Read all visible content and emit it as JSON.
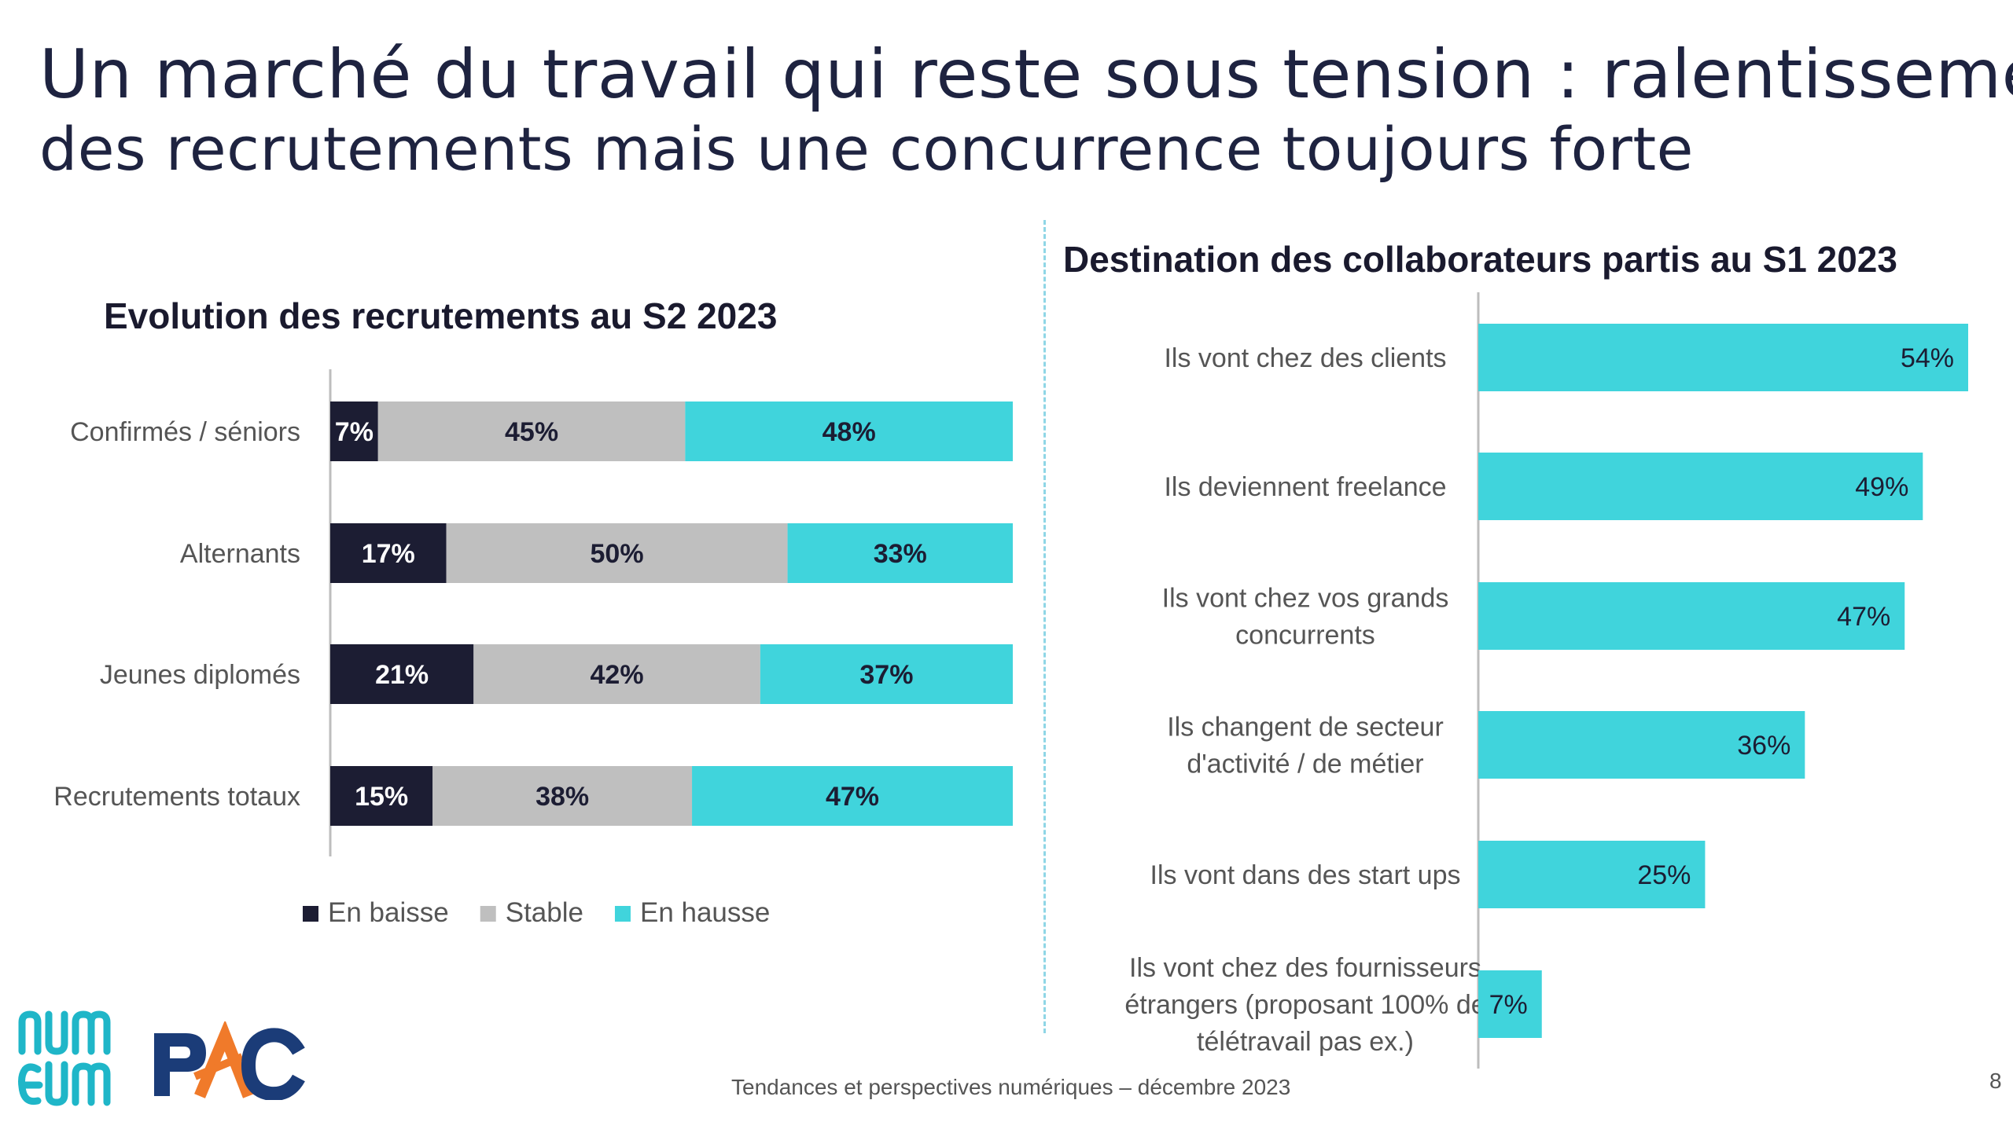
{
  "title": {
    "line1": "Un marché du travail qui reste sous tension : ralentissement",
    "line2": "des recrutements mais une concurrence toujours forte"
  },
  "footer": "Tendances et perspectives numériques – décembre 2023",
  "page_number": "8",
  "logos": {
    "numeum": "numeum",
    "pac": "PAC"
  },
  "colors": {
    "dark": "#1c1d33",
    "gray": "#bfbfbf",
    "cyan": "#40d4dc",
    "title": "#1e2340"
  },
  "chart_data": [
    {
      "type": "bar",
      "orientation": "horizontal",
      "stacked": true,
      "title": "Evolution des recrutements au S2 2023",
      "categories": [
        "Confirmés / séniors",
        "Alternants",
        "Jeunes diplomés",
        "Recrutements totaux"
      ],
      "series": [
        {
          "name": "En baisse",
          "color": "#1c1d33",
          "values": [
            7,
            17,
            21,
            15
          ],
          "labels": [
            "7%",
            "17%",
            "21%",
            "15%"
          ]
        },
        {
          "name": "Stable",
          "color": "#bfbfbf",
          "values": [
            45,
            50,
            42,
            38
          ],
          "labels": [
            "45%",
            "50%",
            "42%",
            "38%"
          ]
        },
        {
          "name": "En hausse",
          "color": "#40d4dc",
          "values": [
            48,
            33,
            37,
            47
          ],
          "labels": [
            "48%",
            "33%",
            "37%",
            "47%"
          ]
        }
      ],
      "xlim": [
        0,
        100
      ],
      "legend": "bottom"
    },
    {
      "type": "bar",
      "orientation": "horizontal",
      "title": "Destination des collaborateurs partis au S1 2023",
      "categories": [
        [
          "Ils vont chez des clients"
        ],
        [
          "Ils deviennent freelance"
        ],
        [
          "Ils vont chez vos grands",
          "concurrents"
        ],
        [
          "Ils changent de secteur",
          "d'activité / de métier"
        ],
        [
          "Ils vont dans des start ups"
        ],
        [
          "Ils vont chez des fournisseurs",
          "étrangers (proposant 100% de",
          "télétravail pas ex.)"
        ]
      ],
      "values": [
        54,
        49,
        47,
        36,
        25,
        7
      ],
      "labels": [
        "54%",
        "49%",
        "47%",
        "36%",
        "25%",
        "7%"
      ],
      "color": "#40d4dc",
      "xlim": [
        0,
        54
      ]
    }
  ]
}
